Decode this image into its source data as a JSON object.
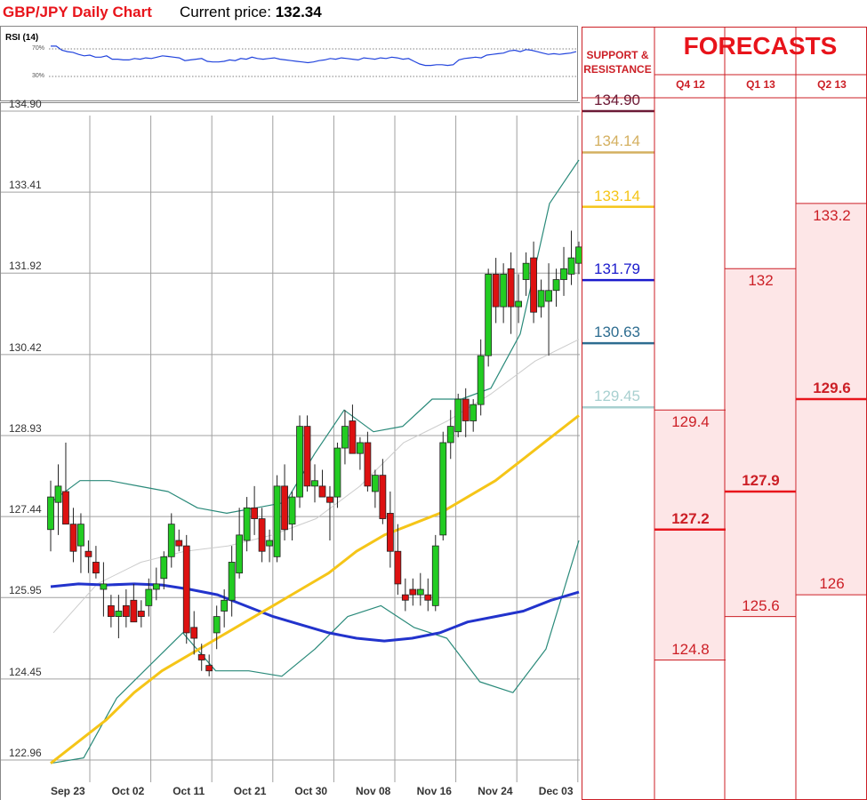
{
  "header": {
    "title": "GBP/JPY Daily Chart",
    "price_label": "Current price:",
    "price_value": "132.34"
  },
  "rsi": {
    "label": "RSI (14)",
    "level_high": "70%",
    "level_low": "30%",
    "values": [
      74,
      74,
      68,
      66,
      65,
      62,
      60,
      61,
      58,
      58,
      60,
      55,
      55,
      54,
      54,
      56,
      55,
      57,
      56,
      58,
      60,
      59,
      58,
      57,
      53,
      54,
      55,
      56,
      52,
      51,
      51,
      52,
      54,
      53,
      56,
      55,
      58,
      56,
      55,
      56,
      57,
      55,
      54,
      53,
      52,
      51,
      50,
      51,
      53,
      54,
      56,
      55,
      57,
      56,
      55,
      54,
      57,
      56,
      55,
      57,
      56,
      58,
      57,
      55,
      56,
      52,
      48,
      46,
      46,
      47,
      47,
      46,
      47,
      54,
      56,
      57,
      58,
      57,
      61,
      62,
      63,
      64,
      67,
      68,
      66,
      69,
      68,
      66,
      64,
      62,
      63,
      62,
      63,
      64,
      66
    ]
  },
  "chart_data": {
    "type": "candlestick",
    "title": "GBP/JPY Daily Chart",
    "ylim": [
      122.96,
      134.9
    ],
    "y_ticks": [
      "134.90",
      "133.41",
      "131.92",
      "130.42",
      "128.93",
      "127.44",
      "125.95",
      "124.45",
      "122.96"
    ],
    "x_ticks": [
      "Sep 23",
      "Oct 02",
      "Oct 11",
      "Oct 21",
      "Oct 30",
      "Nov 08",
      "Nov 16",
      "Nov 24",
      "Dec 03"
    ],
    "colors": {
      "up": "#22cc22",
      "down": "#dd1111",
      "sma_blue": "#2233cc",
      "sma_gold": "#f5c518",
      "bollinger": "#2a8a7a",
      "bollinger_mid": "#cccccc"
    },
    "candles": [
      {
        "d": "Sep 23",
        "o": 127.2,
        "h": 128.1,
        "l": 126.8,
        "c": 127.8
      },
      {
        "d": "Sep 24",
        "o": 127.7,
        "h": 128.4,
        "l": 127.1,
        "c": 128.0
      },
      {
        "d": "Sep 25",
        "o": 127.9,
        "h": 128.8,
        "l": 127.3,
        "c": 127.3
      },
      {
        "d": "Sep 26",
        "o": 127.3,
        "h": 127.6,
        "l": 126.6,
        "c": 126.8
      },
      {
        "d": "Sep 27",
        "o": 126.9,
        "h": 127.5,
        "l": 126.4,
        "c": 127.3
      },
      {
        "d": "Sep 28",
        "o": 126.8,
        "h": 127.0,
        "l": 126.4,
        "c": 126.7
      },
      {
        "d": "Sep 29",
        "o": 126.6,
        "h": 126.9,
        "l": 126.3,
        "c": 126.4
      },
      {
        "d": "Sep 30",
        "o": 126.1,
        "h": 126.6,
        "l": 125.6,
        "c": 126.2
      },
      {
        "d": "Oct 01",
        "o": 125.8,
        "h": 126.0,
        "l": 125.4,
        "c": 125.6
      },
      {
        "d": "Oct 02",
        "o": 125.6,
        "h": 126.0,
        "l": 125.2,
        "c": 125.7
      },
      {
        "d": "Oct 03",
        "o": 125.8,
        "h": 126.1,
        "l": 125.4,
        "c": 125.6
      },
      {
        "d": "Oct 04",
        "o": 125.9,
        "h": 126.2,
        "l": 125.5,
        "c": 125.5
      },
      {
        "d": "Oct 05",
        "o": 125.7,
        "h": 125.9,
        "l": 125.4,
        "c": 125.6
      },
      {
        "d": "Oct 06",
        "o": 125.8,
        "h": 126.3,
        "l": 125.6,
        "c": 126.1
      },
      {
        "d": "Oct 07",
        "o": 126.1,
        "h": 126.5,
        "l": 125.9,
        "c": 126.2
      },
      {
        "d": "Oct 08",
        "o": 126.3,
        "h": 126.8,
        "l": 126.1,
        "c": 126.7
      },
      {
        "d": "Oct 09",
        "o": 126.7,
        "h": 127.5,
        "l": 126.5,
        "c": 127.3
      },
      {
        "d": "Oct 10",
        "o": 127.0,
        "h": 127.2,
        "l": 126.8,
        "c": 126.9
      },
      {
        "d": "Oct 11",
        "o": 126.9,
        "h": 127.1,
        "l": 125.1,
        "c": 125.3
      },
      {
        "d": "Oct 12",
        "o": 125.4,
        "h": 125.7,
        "l": 124.9,
        "c": 125.2
      },
      {
        "d": "Oct 13",
        "o": 124.9,
        "h": 125.1,
        "l": 124.6,
        "c": 124.8
      },
      {
        "d": "Oct 14",
        "o": 124.7,
        "h": 124.9,
        "l": 124.5,
        "c": 124.6
      },
      {
        "d": "Oct 15",
        "o": 125.3,
        "h": 125.8,
        "l": 125.0,
        "c": 125.6
      },
      {
        "d": "Oct 16",
        "o": 125.7,
        "h": 126.1,
        "l": 125.4,
        "c": 125.9
      },
      {
        "d": "Oct 17",
        "o": 125.9,
        "h": 126.9,
        "l": 125.6,
        "c": 126.6
      },
      {
        "d": "Oct 18",
        "o": 126.4,
        "h": 127.6,
        "l": 126.3,
        "c": 127.1
      },
      {
        "d": "Oct 19",
        "o": 127.0,
        "h": 127.8,
        "l": 126.8,
        "c": 127.6
      },
      {
        "d": "Oct 20",
        "o": 127.6,
        "h": 128.0,
        "l": 127.1,
        "c": 127.4
      },
      {
        "d": "Oct 21",
        "o": 127.4,
        "h": 127.6,
        "l": 126.6,
        "c": 126.8
      },
      {
        "d": "Oct 22",
        "o": 126.9,
        "h": 127.2,
        "l": 126.6,
        "c": 127.0
      },
      {
        "d": "Oct 23",
        "o": 126.7,
        "h": 128.2,
        "l": 126.6,
        "c": 128.0
      },
      {
        "d": "Oct 24",
        "o": 128.0,
        "h": 128.4,
        "l": 127.0,
        "c": 127.2
      },
      {
        "d": "Oct 25",
        "o": 127.3,
        "h": 127.9,
        "l": 127.0,
        "c": 127.8
      },
      {
        "d": "Oct 26",
        "o": 127.8,
        "h": 129.3,
        "l": 127.6,
        "c": 129.1
      },
      {
        "d": "Oct 27",
        "o": 129.1,
        "h": 129.3,
        "l": 127.9,
        "c": 128.0
      },
      {
        "d": "Oct 28",
        "o": 128.0,
        "h": 128.4,
        "l": 127.7,
        "c": 128.1
      },
      {
        "d": "Oct 29",
        "o": 128.0,
        "h": 128.3,
        "l": 127.8,
        "c": 127.8
      },
      {
        "d": "Oct 30",
        "o": 127.8,
        "h": 128.0,
        "l": 127.0,
        "c": 127.7
      },
      {
        "d": "Oct 31",
        "o": 127.8,
        "h": 128.8,
        "l": 127.6,
        "c": 128.7
      },
      {
        "d": "Nov 01",
        "o": 128.7,
        "h": 129.4,
        "l": 128.4,
        "c": 129.1
      },
      {
        "d": "Nov 02",
        "o": 129.2,
        "h": 129.5,
        "l": 128.6,
        "c": 128.6
      },
      {
        "d": "Nov 03",
        "o": 128.6,
        "h": 128.9,
        "l": 128.3,
        "c": 128.8
      },
      {
        "d": "Nov 04",
        "o": 128.8,
        "h": 129.0,
        "l": 127.9,
        "c": 128.0
      },
      {
        "d": "Nov 05",
        "o": 127.9,
        "h": 128.3,
        "l": 127.6,
        "c": 128.2
      },
      {
        "d": "Nov 06",
        "o": 128.2,
        "h": 128.5,
        "l": 127.3,
        "c": 127.4
      },
      {
        "d": "Nov 07",
        "o": 127.5,
        "h": 127.9,
        "l": 126.5,
        "c": 126.8
      },
      {
        "d": "Nov 08",
        "o": 126.8,
        "h": 127.3,
        "l": 126.0,
        "c": 126.2
      },
      {
        "d": "Nov 09",
        "o": 126.0,
        "h": 126.3,
        "l": 125.7,
        "c": 125.9
      },
      {
        "d": "Nov 10",
        "o": 126.1,
        "h": 126.3,
        "l": 125.8,
        "c": 126.0
      },
      {
        "d": "Nov 11",
        "o": 126.0,
        "h": 126.4,
        "l": 125.8,
        "c": 126.1
      },
      {
        "d": "Nov 12",
        "o": 126.0,
        "h": 126.3,
        "l": 125.7,
        "c": 125.9
      },
      {
        "d": "Nov 13",
        "o": 125.8,
        "h": 127.1,
        "l": 125.7,
        "c": 126.9
      },
      {
        "d": "Nov 14",
        "o": 127.1,
        "h": 129.0,
        "l": 127.0,
        "c": 128.8
      },
      {
        "d": "Nov 15",
        "o": 128.8,
        "h": 129.4,
        "l": 128.5,
        "c": 129.1
      },
      {
        "d": "Nov 16",
        "o": 129.0,
        "h": 129.7,
        "l": 128.9,
        "c": 129.6
      },
      {
        "d": "Nov 17",
        "o": 129.6,
        "h": 129.8,
        "l": 128.9,
        "c": 129.2
      },
      {
        "d": "Nov 18",
        "o": 129.2,
        "h": 129.6,
        "l": 129.0,
        "c": 129.5
      },
      {
        "d": "Nov 19",
        "o": 129.5,
        "h": 130.7,
        "l": 129.3,
        "c": 130.4
      },
      {
        "d": "Nov 20",
        "o": 130.4,
        "h": 132.0,
        "l": 130.2,
        "c": 131.9
      },
      {
        "d": "Nov 21",
        "o": 131.9,
        "h": 132.2,
        "l": 131.0,
        "c": 131.3
      },
      {
        "d": "Nov 22",
        "o": 131.3,
        "h": 132.1,
        "l": 131.0,
        "c": 131.9
      },
      {
        "d": "Nov 23",
        "o": 132.0,
        "h": 132.3,
        "l": 130.8,
        "c": 131.3
      },
      {
        "d": "Nov 24",
        "o": 131.3,
        "h": 131.9,
        "l": 131.0,
        "c": 131.4
      },
      {
        "d": "Nov 25",
        "o": 131.8,
        "h": 132.3,
        "l": 131.5,
        "c": 132.1
      },
      {
        "d": "Nov 26",
        "o": 132.2,
        "h": 132.5,
        "l": 131.0,
        "c": 131.2
      },
      {
        "d": "Nov 27",
        "o": 131.3,
        "h": 131.8,
        "l": 131.1,
        "c": 131.6
      },
      {
        "d": "Nov 28",
        "o": 131.4,
        "h": 132.1,
        "l": 130.4,
        "c": 131.6
      },
      {
        "d": "Nov 29",
        "o": 131.6,
        "h": 132.0,
        "l": 131.3,
        "c": 131.8
      },
      {
        "d": "Nov 30",
        "o": 131.8,
        "h": 132.4,
        "l": 131.5,
        "c": 132.0
      },
      {
        "d": "Dec 01",
        "o": 131.9,
        "h": 132.7,
        "l": 131.7,
        "c": 132.2
      },
      {
        "d": "Dec 02",
        "o": 132.1,
        "h": 132.5,
        "l": 131.9,
        "c": 132.4
      }
    ],
    "sma_blue": [
      126.15,
      126.2,
      126.18,
      126.2,
      126.18,
      126.1,
      126.0,
      125.8,
      125.6,
      125.45,
      125.3,
      125.2,
      125.15,
      125.2,
      125.3,
      125.5,
      125.6,
      125.7,
      125.9,
      126.05
    ],
    "sma_gold": [
      122.9,
      123.3,
      123.7,
      124.2,
      124.6,
      124.9,
      125.2,
      125.5,
      125.8,
      126.1,
      126.4,
      126.8,
      127.1,
      127.3,
      127.5,
      127.8,
      128.1,
      128.5,
      128.9,
      129.3
    ],
    "boll_upper": [
      127.7,
      128.1,
      128.1,
      128.0,
      127.9,
      127.6,
      127.5,
      127.6,
      127.7,
      128.6,
      129.4,
      129.0,
      129.1,
      129.6,
      129.6,
      129.8,
      130.8,
      133.2,
      134.0
    ],
    "boll_lower": [
      122.9,
      123.0,
      124.1,
      124.7,
      125.3,
      124.6,
      124.6,
      124.5,
      125.0,
      125.6,
      125.8,
      125.4,
      125.2,
      124.4,
      124.2,
      125.0,
      127.0
    ],
    "boll_middle": [
      125.3,
      126.2,
      126.6,
      126.8,
      126.9,
      127.1,
      127.4,
      128.0,
      128.8,
      129.2,
      129.7,
      130.3,
      130.7
    ]
  },
  "support_resistance": {
    "heading": "SUPPORT & RESISTANCE",
    "levels": [
      {
        "label": "134.90",
        "value": 134.9,
        "color": "#6b1a36"
      },
      {
        "label": "134.14",
        "value": 134.14,
        "color": "#d4b060"
      },
      {
        "label": "133.14",
        "value": 133.14,
        "color": "#f5c518"
      },
      {
        "label": "131.79",
        "value": 131.79,
        "color": "#1a1acc"
      },
      {
        "label": "130.63",
        "value": 130.63,
        "color": "#2e6d90"
      },
      {
        "label": "129.45",
        "value": 129.45,
        "color": "#a8d0d0"
      }
    ]
  },
  "forecasts": {
    "heading": "FORECASTS",
    "quarters": [
      {
        "label": "Q4 12",
        "high": "129.4",
        "mid": "127.2",
        "low": "124.8",
        "high_v": 129.4,
        "mid_v": 127.2,
        "low_v": 124.8
      },
      {
        "label": "Q1 13",
        "high": "132",
        "mid": "127.9",
        "low": "125.6",
        "high_v": 132.0,
        "mid_v": 127.9,
        "low_v": 125.6
      },
      {
        "label": "Q2 13",
        "high": "133.2",
        "mid": "129.6",
        "low": "126",
        "high_v": 133.2,
        "mid_v": 129.6,
        "low_v": 126.0
      }
    ]
  }
}
